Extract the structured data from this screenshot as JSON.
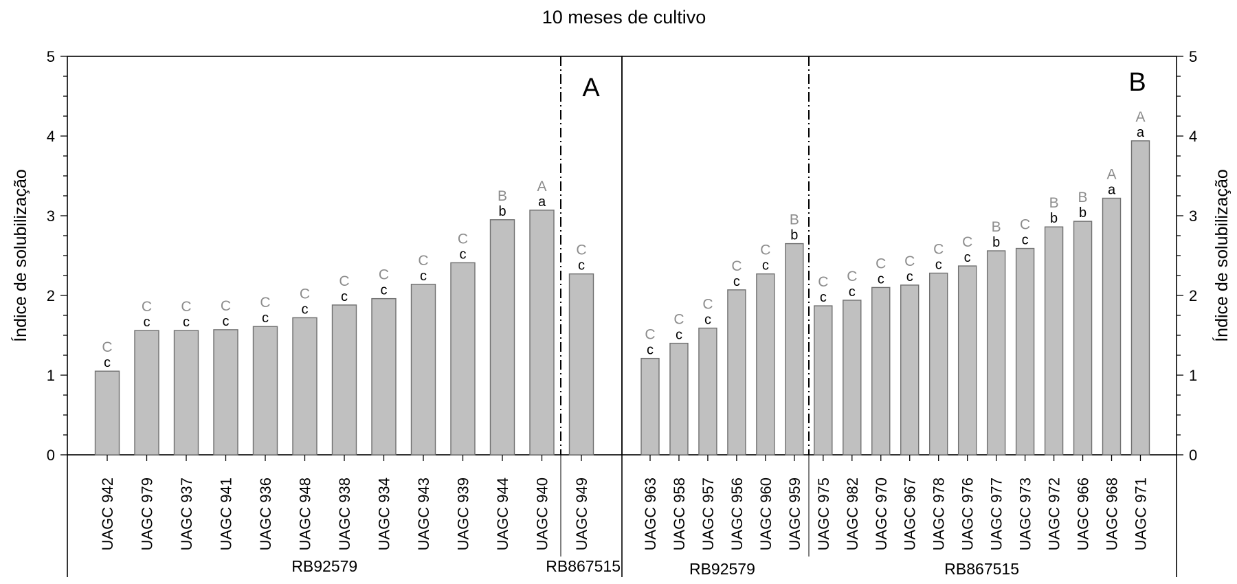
{
  "title": "10 meses de cultivo",
  "colors": {
    "bar_fill": "#c0c0c0",
    "bar_stroke": "#707070",
    "letter_upper": "#8c8c8c",
    "letter_lower": "#000000",
    "axis": "#000000"
  },
  "chart_data": [
    {
      "type": "bar",
      "panel_label": "A",
      "ylabel": "Índice de solubilização",
      "ylim": [
        0,
        5
      ],
      "yticks": [
        "0",
        "1",
        "2",
        "3",
        "4",
        "5"
      ],
      "groups": [
        {
          "name": "RB92579",
          "count": 12
        },
        {
          "name": "RB867515",
          "count": 1
        }
      ],
      "categories": [
        "UAGC 942",
        "UAGC 979",
        "UAGC 937",
        "UAGC 941",
        "UAGC 936",
        "UAGC 948",
        "UAGC 938",
        "UAGC 934",
        "UAGC 943",
        "UAGC 939",
        "UAGC 944",
        "UAGC 940",
        "UAGC 949"
      ],
      "values": [
        1.05,
        1.56,
        1.56,
        1.57,
        1.61,
        1.72,
        1.88,
        1.96,
        2.14,
        2.41,
        2.95,
        3.07,
        2.27
      ],
      "upper_letters": [
        "C",
        "C",
        "C",
        "C",
        "C",
        "C",
        "C",
        "C",
        "C",
        "C",
        "B",
        "A",
        "C"
      ],
      "lower_letters": [
        "c",
        "c",
        "c",
        "c",
        "c",
        "c",
        "c",
        "c",
        "c",
        "c",
        "b",
        "a",
        "c"
      ]
    },
    {
      "type": "bar",
      "panel_label": "B",
      "ylabel": "Índice de solubilização",
      "ylim": [
        0,
        5
      ],
      "yticks": [
        "0",
        "1",
        "2",
        "3",
        "4",
        "5"
      ],
      "groups": [
        {
          "name": "RB92579",
          "count": 6
        },
        {
          "name": "RB867515",
          "count": 12
        }
      ],
      "categories": [
        "UAGC 963",
        "UAGC 958",
        "UAGC 957",
        "UAGC 956",
        "UAGC 960",
        "UAGC 959",
        "UAGC 975",
        "UAGC 982",
        "UAGC 970",
        "UAGC 967",
        "UAGC 978",
        "UAGC 976",
        "UAGC 977",
        "UAGC 973",
        "UAGC 972",
        "UAGC 966",
        "UAGC 968",
        "UAGC 971"
      ],
      "values": [
        1.21,
        1.4,
        1.59,
        2.07,
        2.27,
        2.65,
        1.87,
        1.94,
        2.1,
        2.13,
        2.28,
        2.37,
        2.56,
        2.59,
        2.86,
        2.93,
        3.22,
        3.94
      ],
      "upper_letters": [
        "C",
        "C",
        "C",
        "C",
        "C",
        "B",
        "C",
        "C",
        "C",
        "C",
        "C",
        "C",
        "B",
        "C",
        "B",
        "B",
        "A",
        "A"
      ],
      "lower_letters": [
        "c",
        "c",
        "c",
        "c",
        "c",
        "b",
        "c",
        "c",
        "c",
        "c",
        "c",
        "c",
        "b",
        "c",
        "b",
        "b",
        "a",
        "a"
      ]
    }
  ]
}
